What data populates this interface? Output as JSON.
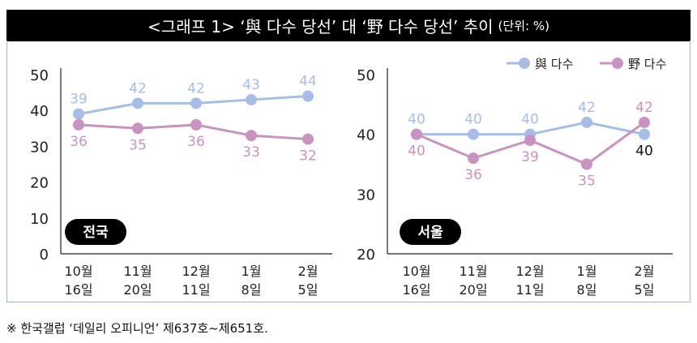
{
  "title": {
    "main": "<그래프 1> ‘與 다수 당선’ 대 ‘野 다수 당선’ 추이",
    "unit": "(단위: %)"
  },
  "colors": {
    "ruling": "#a6bde6",
    "opposition": "#c993c0"
  },
  "legend": [
    "與 다수",
    "野 다수"
  ],
  "chart_data": [
    {
      "type": "line",
      "panel": "전국",
      "categories": [
        [
          "10월",
          "16일"
        ],
        [
          "11월",
          "20일"
        ],
        [
          "12월",
          "11일"
        ],
        [
          "1월",
          "8일"
        ],
        [
          "2월",
          "5일"
        ]
      ],
      "yticks": [
        0,
        10,
        20,
        30,
        40,
        50
      ],
      "ylim": [
        0,
        50
      ],
      "series": [
        {
          "name": "與 다수",
          "values": [
            39,
            42,
            42,
            43,
            44
          ]
        },
        {
          "name": "野 다수",
          "values": [
            36,
            35,
            36,
            33,
            32
          ]
        }
      ]
    },
    {
      "type": "line",
      "panel": "서울",
      "categories": [
        [
          "10월",
          "16일"
        ],
        [
          "11월",
          "20일"
        ],
        [
          "12월",
          "11일"
        ],
        [
          "1월",
          "8일"
        ],
        [
          "2월",
          "5일"
        ]
      ],
      "yticks": [
        20,
        30,
        40,
        50
      ],
      "ylim": [
        20,
        50
      ],
      "legend_position": "top-right",
      "series": [
        {
          "name": "與 다수",
          "values": [
            40,
            40,
            40,
            42,
            40
          ]
        },
        {
          "name": "野 다수",
          "values": [
            40,
            36,
            39,
            35,
            42
          ]
        }
      ]
    }
  ],
  "footnote": "※ 한국갤럽 ‘데일리 오피니언’ 제637호~제651호."
}
